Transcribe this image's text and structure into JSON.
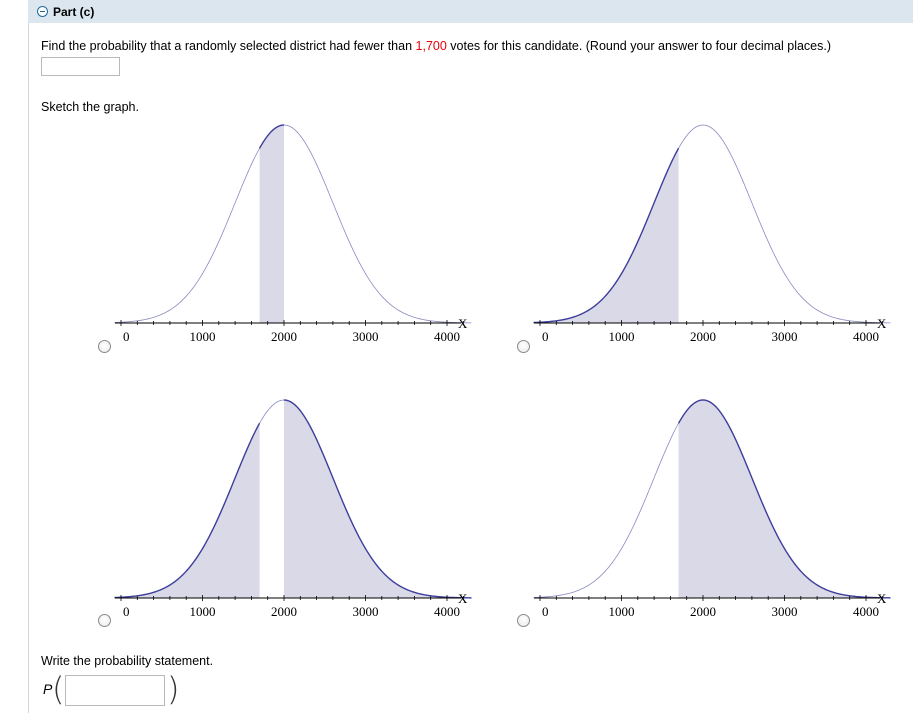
{
  "part": {
    "title": "Part (c)",
    "icon": "minus-circle-icon"
  },
  "question": {
    "before": "Find the probability that a randomly selected district had fewer than ",
    "highlight": "1,700",
    "after": " votes for this candidate. (Round your answer to four decimal places.)",
    "highlight_color": "#e8000b"
  },
  "answer": {
    "value": ""
  },
  "sketch": {
    "label": "Sketch the graph.",
    "tick_labels": [
      "0",
      "1000",
      "2000",
      "3000",
      "4000"
    ],
    "axis_label": "X",
    "fill_color": "#d9d9e8",
    "curve_color": "#3e3e9c",
    "options": [
      {
        "shading": "between 1700 and 2000"
      },
      {
        "shading": "left of 1700"
      },
      {
        "shading": "outside 1700 to 2000"
      },
      {
        "shading": "right of 1700"
      }
    ]
  },
  "statement": {
    "label": "Write the probability statement.",
    "p": "P",
    "value": ""
  }
}
